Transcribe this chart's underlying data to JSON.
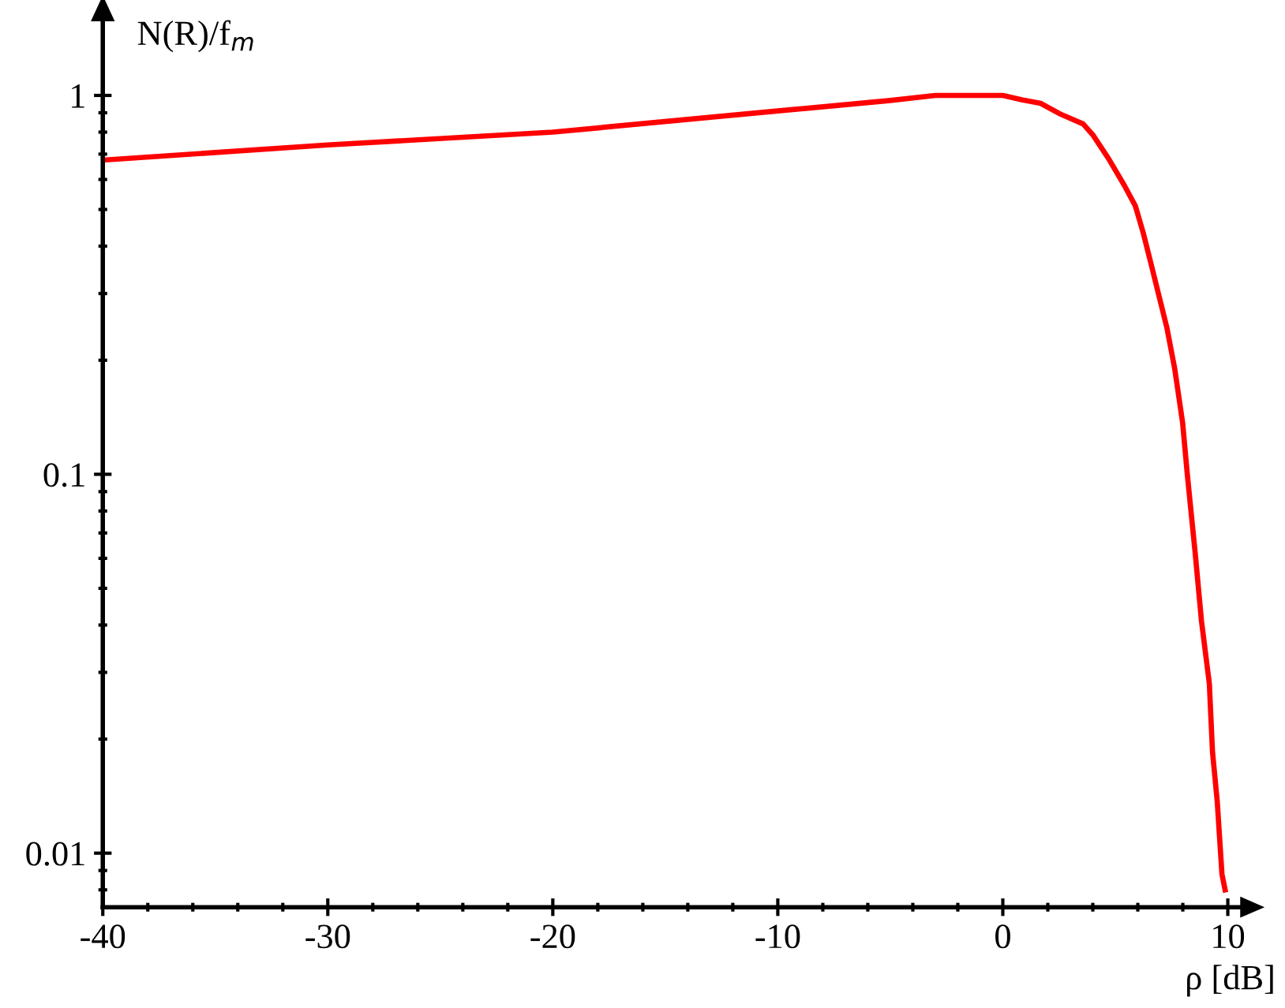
{
  "chart_data": {
    "type": "line",
    "xlabel": "ρ [dB]",
    "ylabel": "N(R)/f$_{m}$",
    "log": "y",
    "xlim": [
      -40,
      10.6
    ],
    "ylim": [
      0.0072,
      1.58
    ],
    "xticks": [
      -40,
      -30,
      -20,
      -10,
      0,
      10
    ],
    "yticks": [
      0.01,
      0.1,
      1
    ],
    "grid": false,
    "legend": false,
    "marker": "none",
    "line_style": "solid",
    "series": [
      {
        "color": "#ff0000",
        "x": [
          -40,
          -30,
          -20,
          -10,
          -5,
          -3,
          0,
          0.84,
          1.68,
          2.59,
          3.57,
          4.0,
          4.7,
          5.4,
          5.89,
          6.24,
          6.59,
          6.94,
          7.29,
          7.64,
          7.99,
          8.2,
          8.55,
          8.83,
          9.18,
          9.32,
          9.53,
          9.74,
          9.88
        ],
        "values": [
          0.675,
          0.74,
          0.8,
          0.91,
          0.97,
          1.0,
          1.0,
          0.974,
          0.953,
          0.891,
          0.841,
          0.787,
          0.681,
          0.579,
          0.511,
          0.434,
          0.359,
          0.296,
          0.244,
          0.19,
          0.137,
          0.1,
          0.062,
          0.041,
          0.028,
          0.0185,
          0.0137,
          0.0088,
          0.008
        ]
      }
    ]
  }
}
